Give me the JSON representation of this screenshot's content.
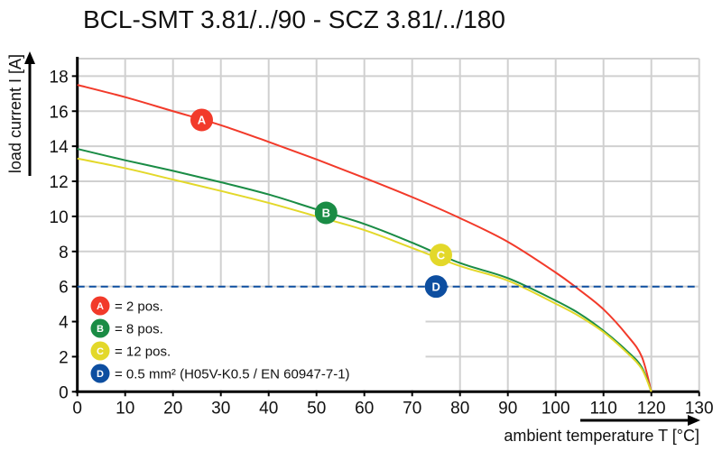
{
  "chart_data": {
    "type": "line",
    "title": "BCL-SMT 3.81/../90 - SCZ 3.81/../180",
    "xlabel": "ambient temperature T [°C]",
    "ylabel": "load current I [A]",
    "xlim": [
      0,
      130
    ],
    "ylim": [
      0,
      19
    ],
    "xticks": [
      0,
      10,
      20,
      30,
      40,
      50,
      60,
      70,
      80,
      90,
      100,
      110,
      120,
      130
    ],
    "yticks": [
      0,
      2,
      4,
      6,
      8,
      10,
      12,
      14,
      16,
      18
    ],
    "grid": true,
    "legend_position": "bottom-left",
    "series": [
      {
        "marker": "A",
        "name": "= 2 pos.",
        "color": "#f23a2a",
        "marker_at": [
          26,
          15.5
        ],
        "x": [
          0,
          10,
          20,
          30,
          40,
          50,
          60,
          70,
          80,
          90,
          100,
          105,
          110,
          115,
          118,
          120
        ],
        "y": [
          17.5,
          16.8,
          16.0,
          15.2,
          14.25,
          13.25,
          12.2,
          11.1,
          9.9,
          8.55,
          6.8,
          5.8,
          4.7,
          3.2,
          2.0,
          0
        ]
      },
      {
        "marker": "B",
        "name": "= 8 pos.",
        "color": "#1a8c45",
        "marker_at": [
          52,
          10.2
        ],
        "x": [
          0,
          10,
          20,
          30,
          40,
          50,
          60,
          70,
          80,
          90,
          100,
          105,
          110,
          115,
          118,
          120
        ],
        "y": [
          13.85,
          13.2,
          12.6,
          11.95,
          11.25,
          10.4,
          9.57,
          8.5,
          7.34,
          6.48,
          5.2,
          4.45,
          3.48,
          2.3,
          1.4,
          0
        ]
      },
      {
        "marker": "C",
        "name": "= 12 pos.",
        "color": "#e3d82a",
        "marker_at": [
          76,
          7.8
        ],
        "x": [
          0,
          10,
          20,
          30,
          40,
          50,
          60,
          70,
          80,
          90,
          100,
          105,
          110,
          115,
          118,
          120
        ],
        "y": [
          13.3,
          12.75,
          12.1,
          11.45,
          10.77,
          10.0,
          9.22,
          8.2,
          7.17,
          6.34,
          5.02,
          4.3,
          3.4,
          2.2,
          1.3,
          0
        ]
      },
      {
        "marker": "D",
        "name": "= 0.5 mm² (H05V-K0.5 / EN 60947-7-1)",
        "color": "#0d4ea0",
        "dashed": true,
        "marker_at": [
          75,
          6
        ],
        "x": [
          0,
          130
        ],
        "y": [
          6,
          6
        ]
      }
    ]
  }
}
